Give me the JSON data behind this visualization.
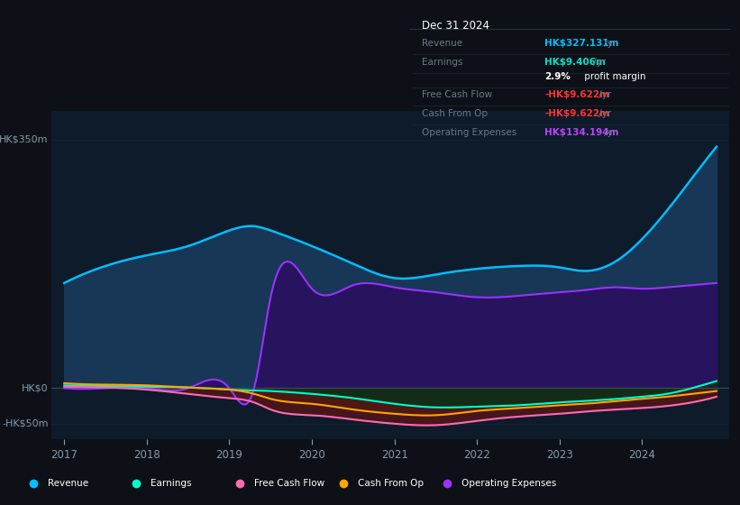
{
  "bg_color": "#0d1117",
  "plot_bg_color": "#0d1b2a",
  "title": "Dec 31 2024",
  "ylabel_top": "HK$350m",
  "ylabel_mid": "HK$0",
  "ylabel_bot": "-HK$50m",
  "tooltip_rows": [
    {
      "label": "Revenue",
      "value": "HK$327.131m",
      "val_color": "#00bfff",
      "label_color": "#6a7a8a"
    },
    {
      "label": "Earnings",
      "value": "HK$9.406m",
      "val_color": "#00e5cc",
      "label_color": "#6a7a8a"
    },
    {
      "label": "",
      "value": "2.9% profit margin",
      "val_color": "white",
      "label_color": "#6a7a8a",
      "special": "margin"
    },
    {
      "label": "Free Cash Flow",
      "value": "-HK$9.622m",
      "val_color": "#ff3333",
      "label_color": "#6a7a8a"
    },
    {
      "label": "Cash From Op",
      "value": "-HK$9.622m",
      "val_color": "#ff3333",
      "label_color": "#6a7a8a"
    },
    {
      "label": "Operating Expenses",
      "value": "HK$134.194m",
      "val_color": "#bb44ff",
      "label_color": "#6a7a8a"
    }
  ],
  "revenue_color": "#00bfff",
  "earnings_color": "#00ffcc",
  "fcf_color": "#ff69b4",
  "cashop_color": "#ffa500",
  "opex_color": "#9933ff",
  "revenue_fill": "#1a3a5c",
  "opex_fill": "#2a1060",
  "fcf_fill": "#5a1515",
  "cashop_fill": "#3a2800",
  "earnings_fill": "#00331a",
  "text_color": "#8899aa",
  "grid_color": "#1a2a3a",
  "legend_items": [
    {
      "label": "Revenue",
      "color": "#00bfff"
    },
    {
      "label": "Earnings",
      "color": "#00ffcc"
    },
    {
      "label": "Free Cash Flow",
      "color": "#ff69b4"
    },
    {
      "label": "Cash From Op",
      "color": "#ffa500"
    },
    {
      "label": "Operating Expenses",
      "color": "#9933ff"
    }
  ]
}
